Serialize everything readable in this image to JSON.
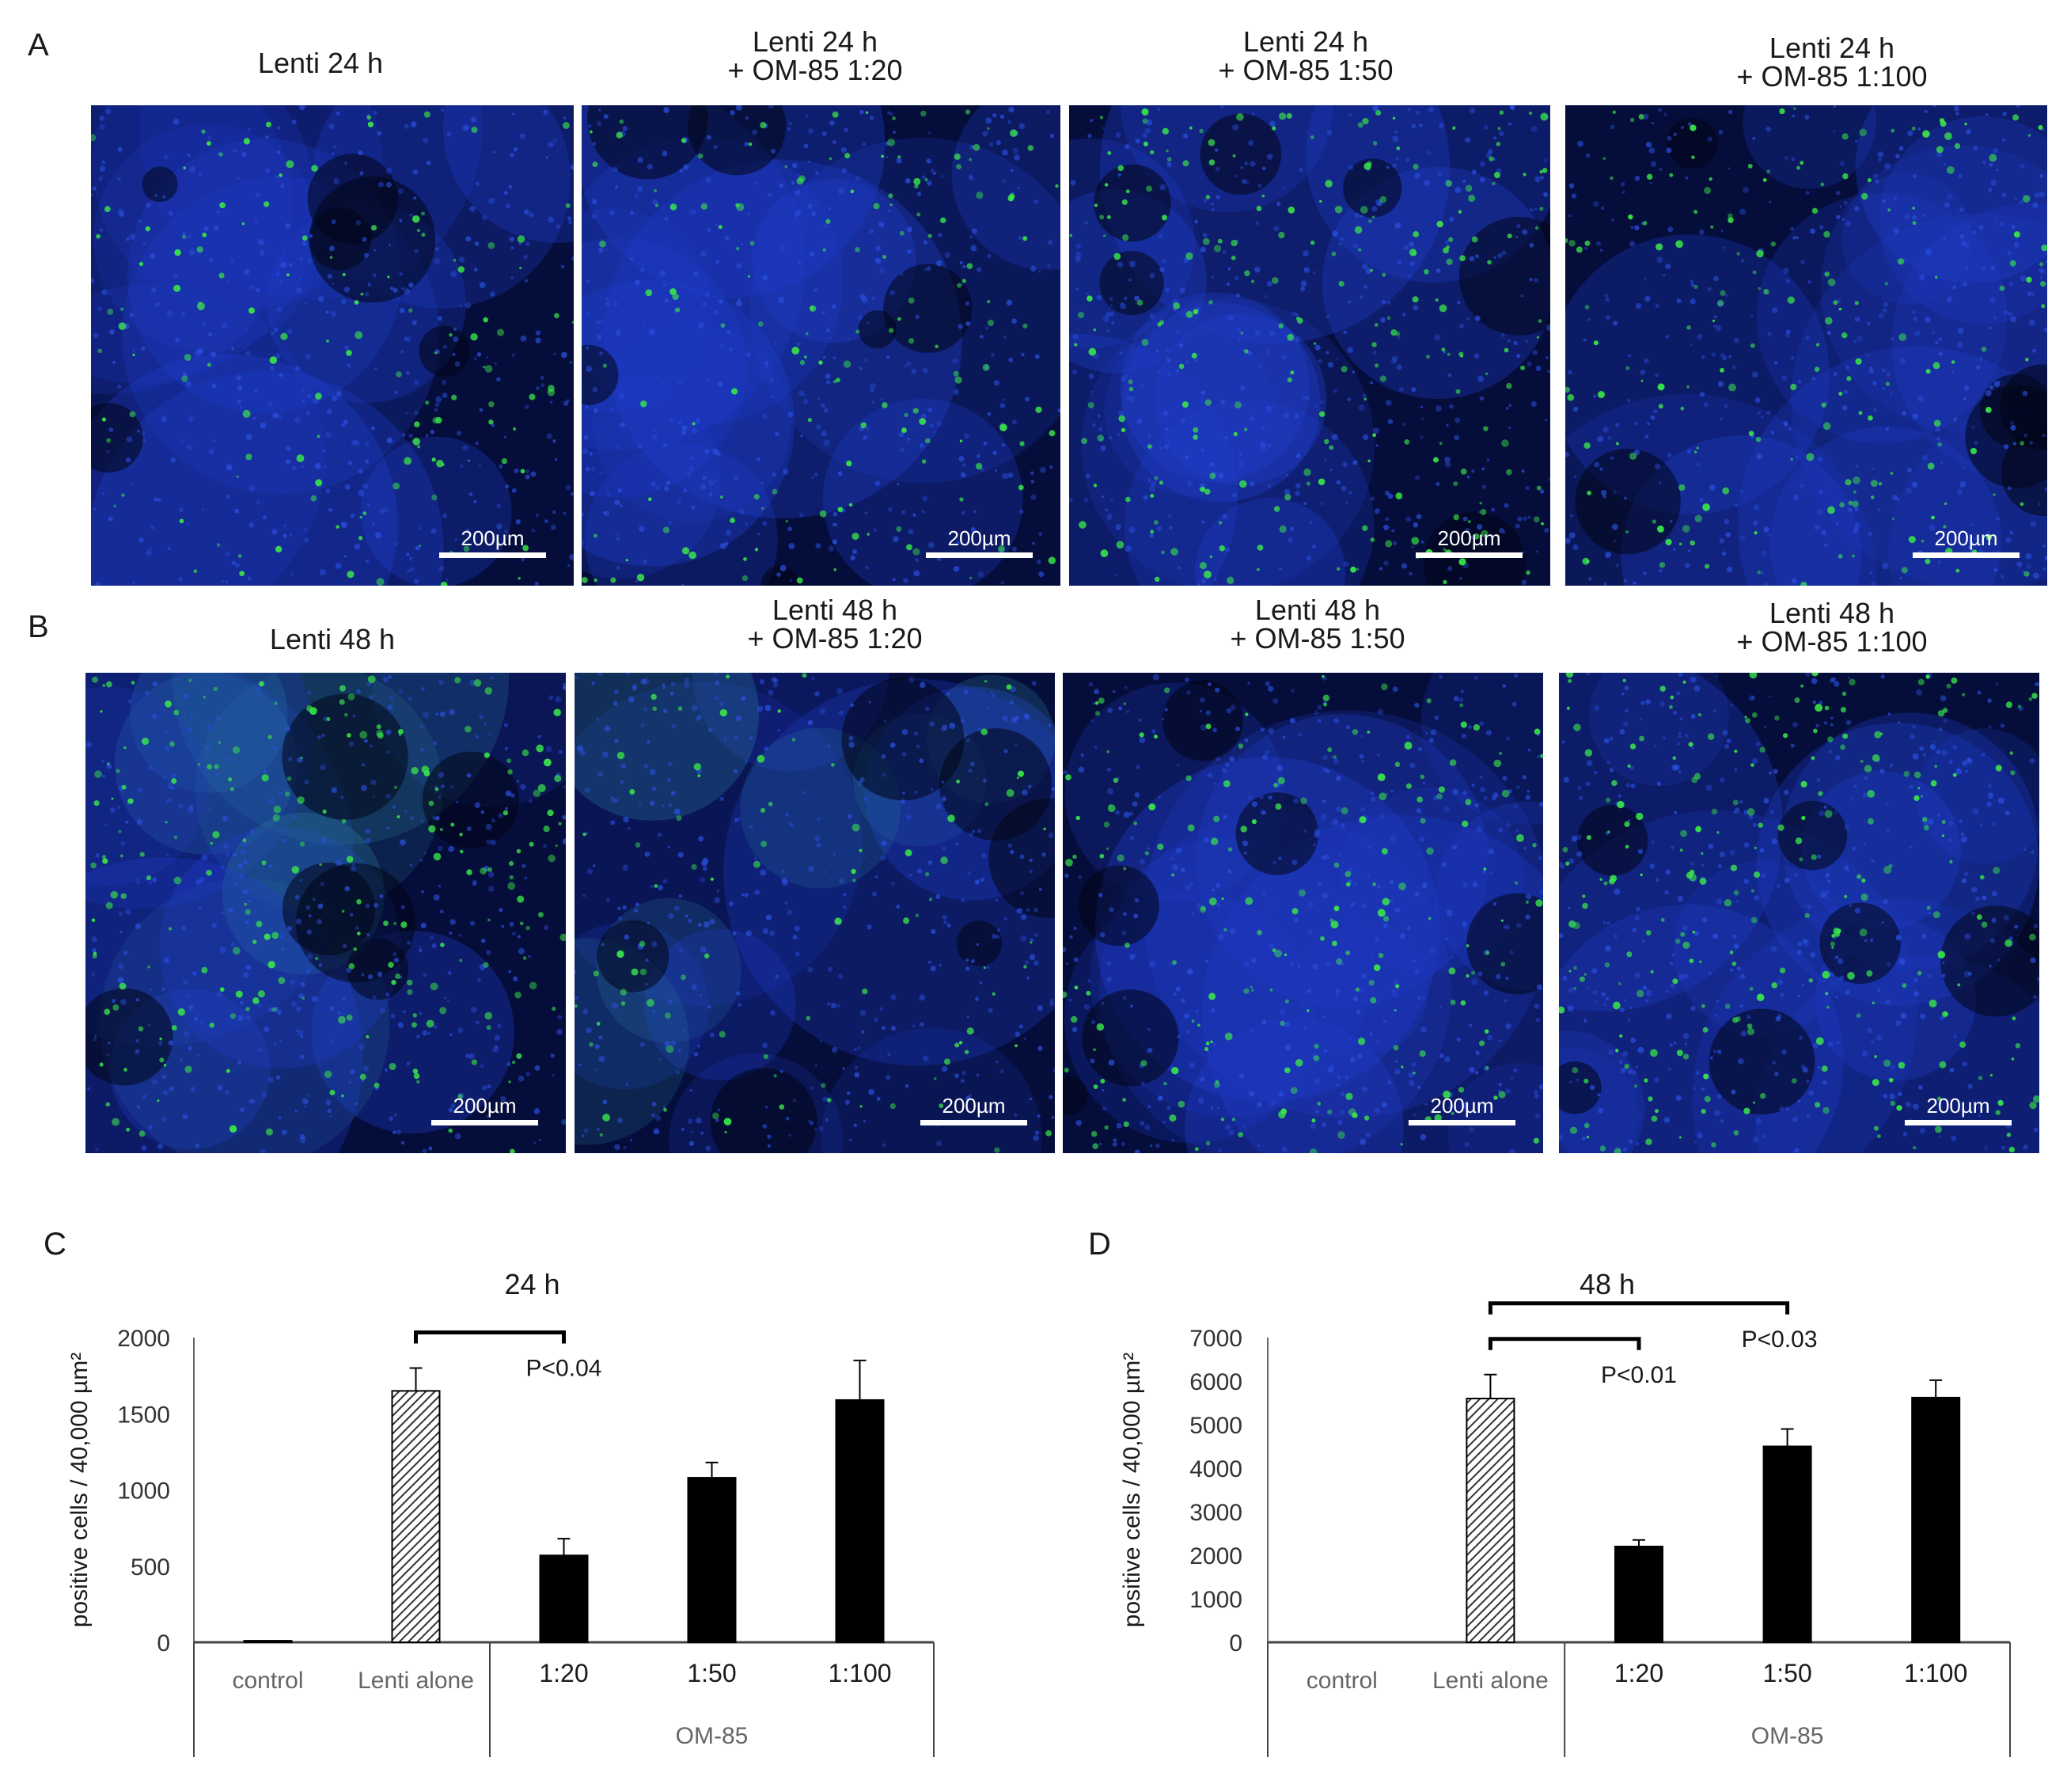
{
  "panels": {
    "A": {
      "letter": "A",
      "titles": [
        {
          "line1": "Lenti 24 h",
          "line2": ""
        },
        {
          "line1": "Lenti 24 h",
          "line2": "+ OM-85 1:20"
        },
        {
          "line1": "Lenti 24 h",
          "line2": "+ OM-85 1:50"
        },
        {
          "line1": "Lenti 24 h",
          "line2": "+ OM-85 1:100"
        }
      ]
    },
    "B": {
      "letter": "B",
      "titles": [
        {
          "line1": "Lenti 48 h",
          "line2": ""
        },
        {
          "line1": "Lenti 48 h",
          "line2": "+ OM-85 1:20"
        },
        {
          "line1": "Lenti 48 h",
          "line2": "+ OM-85 1:50"
        },
        {
          "line1": "Lenti 48 h",
          "line2": "+ OM-85 1:100"
        }
      ]
    },
    "C": {
      "letter": "C"
    },
    "D": {
      "letter": "D"
    }
  },
  "scale_bar_label": "200µm",
  "colors": {
    "nuclei": "#1f3cc8",
    "signal": "#39e64a",
    "background": "#050d3a",
    "bar_solid": "#000000",
    "bar_hatched": "#555555"
  },
  "chart_data": [
    {
      "type": "bar",
      "panel": "C",
      "title": "24 h",
      "ylabel": "positive cells / 40,000 µm²",
      "ylim": [
        0,
        2000
      ],
      "yticks": [
        0,
        500,
        1000,
        1500,
        2000
      ],
      "categories": [
        "control",
        "Lenti alone",
        "1:20",
        "1:50",
        "1:100"
      ],
      "group_label": "OM-85",
      "values": [
        10,
        1650,
        570,
        1080,
        1590
      ],
      "errors": [
        0,
        150,
        110,
        100,
        260
      ],
      "styles": [
        "solid",
        "hatched",
        "solid",
        "solid",
        "solid"
      ],
      "significance": [
        {
          "from": 1,
          "to": 2,
          "label": "P<0.04"
        }
      ]
    },
    {
      "type": "bar",
      "panel": "D",
      "title": "48 h",
      "ylabel": "positive cells / 40,000 µm²",
      "ylim": [
        0,
        7000
      ],
      "yticks": [
        0,
        1000,
        2000,
        3000,
        4000,
        5000,
        6000,
        7000
      ],
      "categories": [
        "control",
        "Lenti alone",
        "1:20",
        "1:50",
        "1:100"
      ],
      "group_label": "OM-85",
      "values": [
        0,
        5600,
        2200,
        4500,
        5620
      ],
      "errors": [
        0,
        550,
        150,
        400,
        400
      ],
      "styles": [
        "solid",
        "hatched",
        "solid",
        "solid",
        "solid"
      ],
      "significance": [
        {
          "from": 1,
          "to": 2,
          "label": "P<0.01"
        },
        {
          "from": 1,
          "to": 3,
          "label": "P<0.03"
        }
      ]
    }
  ]
}
